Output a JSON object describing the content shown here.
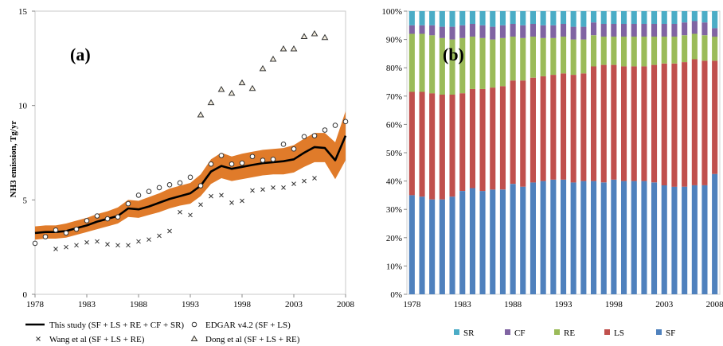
{
  "chart_data": [
    {
      "type": "line",
      "panel_label": "(a)",
      "ylabel": "NH3 emission, Tg/yr",
      "ylim": [
        0,
        15
      ],
      "yticks": [
        0,
        5,
        10,
        15
      ],
      "xlim": [
        1978,
        2008
      ],
      "xticks": [
        1978,
        1983,
        1988,
        1993,
        1998,
        2003,
        2008
      ],
      "grid": false,
      "legend_position": "bottom",
      "colors": {
        "band": "#e07b2a",
        "line": "#000000"
      },
      "series": [
        {
          "name": "This study (SF + LS + RE + CF + SR)",
          "style": "line-band",
          "x": [
            1978,
            1979,
            1980,
            1981,
            1982,
            1983,
            1984,
            1985,
            1986,
            1987,
            1988,
            1989,
            1990,
            1991,
            1992,
            1993,
            1994,
            1995,
            1996,
            1997,
            1998,
            1999,
            2000,
            2001,
            2002,
            2003,
            2004,
            2005,
            2006,
            2007,
            2008
          ],
          "values": [
            3.25,
            3.3,
            3.3,
            3.35,
            3.5,
            3.65,
            3.85,
            4.0,
            4.15,
            4.55,
            4.5,
            4.65,
            4.85,
            5.05,
            5.2,
            5.35,
            5.75,
            6.5,
            6.8,
            6.65,
            6.75,
            6.85,
            6.95,
            7.0,
            7.05,
            7.15,
            7.5,
            7.8,
            7.75,
            7.1,
            8.4
          ],
          "lower": [
            2.9,
            2.95,
            2.95,
            3.0,
            3.15,
            3.3,
            3.45,
            3.6,
            3.75,
            4.1,
            4.05,
            4.2,
            4.35,
            4.55,
            4.7,
            4.8,
            5.2,
            5.85,
            6.15,
            6.0,
            6.1,
            6.2,
            6.3,
            6.35,
            6.35,
            6.45,
            6.75,
            7.0,
            7.0,
            6.1,
            7.1
          ],
          "upper": [
            3.6,
            3.65,
            3.65,
            3.75,
            3.9,
            4.05,
            4.25,
            4.4,
            4.6,
            5.0,
            4.95,
            5.15,
            5.35,
            5.6,
            5.75,
            5.9,
            6.35,
            7.15,
            7.5,
            7.3,
            7.45,
            7.55,
            7.65,
            7.7,
            7.75,
            7.9,
            8.25,
            8.55,
            8.55,
            8.05,
            9.7
          ]
        },
        {
          "name": "EDGAR v4.2 (SF + LS)",
          "style": "circle",
          "x": [
            1978,
            1979,
            1980,
            1981,
            1982,
            1983,
            1984,
            1985,
            1986,
            1987,
            1988,
            1989,
            1990,
            1991,
            1992,
            1993,
            1994,
            1995,
            1996,
            1997,
            1998,
            1999,
            2000,
            2001,
            2002,
            2003,
            2004,
            2005,
            2006,
            2007,
            2008
          ],
          "values": [
            2.7,
            3.05,
            3.4,
            3.25,
            3.45,
            3.9,
            4.15,
            4.0,
            4.1,
            4.8,
            5.25,
            5.45,
            5.65,
            5.8,
            5.9,
            6.2,
            5.75,
            6.9,
            7.35,
            6.9,
            6.95,
            7.3,
            7.1,
            7.15,
            7.95,
            7.7,
            8.35,
            8.4,
            8.7,
            8.95,
            9.15
          ]
        },
        {
          "name": "Wang et al (SF + LS + RE)",
          "style": "x",
          "x": [
            1980,
            1981,
            1982,
            1983,
            1984,
            1985,
            1986,
            1987,
            1988,
            1989,
            1990,
            1991,
            1992,
            1993,
            1994,
            1995,
            1996,
            1997,
            1998,
            1999,
            2000,
            2001,
            2002,
            2003,
            2004,
            2005
          ],
          "values": [
            2.4,
            2.5,
            2.6,
            2.75,
            2.8,
            2.65,
            2.6,
            2.6,
            2.8,
            2.9,
            3.1,
            3.35,
            4.35,
            4.2,
            4.75,
            5.2,
            5.25,
            4.85,
            4.95,
            5.5,
            5.55,
            5.65,
            5.65,
            5.85,
            6.0,
            6.15
          ]
        },
        {
          "name": "Dong et al (SF + LS + RE)",
          "style": "triangle",
          "x": [
            1994,
            1995,
            1996,
            1997,
            1998,
            1999,
            2000,
            2001,
            2002,
            2003,
            2004,
            2005,
            2006
          ],
          "values": [
            9.5,
            10.15,
            10.85,
            10.65,
            11.2,
            10.9,
            11.95,
            12.45,
            13.0,
            13.0,
            13.65,
            13.8,
            13.6
          ]
        }
      ]
    },
    {
      "type": "bar",
      "stacked": true,
      "panel_label": "(b)",
      "ylim": [
        0,
        100
      ],
      "yticks": [
        "0%",
        "10%",
        "20%",
        "30%",
        "40%",
        "50%",
        "60%",
        "70%",
        "80%",
        "90%",
        "100%"
      ],
      "xticks": [
        "1978",
        "1983",
        "1988",
        "1993",
        "1998",
        "2003",
        "2008"
      ],
      "categories": [
        1978,
        1979,
        1980,
        1981,
        1982,
        1983,
        1984,
        1985,
        1986,
        1987,
        1988,
        1989,
        1990,
        1991,
        1992,
        1993,
        1994,
        1995,
        1996,
        1997,
        1998,
        1999,
        2000,
        2001,
        2002,
        2003,
        2004,
        2005,
        2006,
        2007,
        2008
      ],
      "grid": false,
      "legend_position": "bottom",
      "series": [
        {
          "name": "SF",
          "color": "#4f81bd",
          "values": [
            35,
            34.5,
            33.5,
            33.5,
            34.5,
            36.5,
            37.5,
            36.5,
            37,
            37,
            39,
            38,
            39.5,
            40,
            40.5,
            40.5,
            39.5,
            40,
            40,
            39.5,
            40.5,
            40,
            40,
            40,
            39.5,
            38.5,
            38,
            38,
            38.5,
            38.5,
            42.5
          ]
        },
        {
          "name": "LS",
          "color": "#c0504d",
          "values": [
            36.5,
            37,
            37.5,
            37,
            36,
            34.5,
            35,
            36,
            36,
            36.5,
            36.5,
            37.5,
            37,
            37,
            37,
            37.5,
            38,
            38,
            40.5,
            41.5,
            40.5,
            40.5,
            40.5,
            40.5,
            41.5,
            43,
            43.5,
            44,
            44.5,
            44,
            40
          ]
        },
        {
          "name": "RE",
          "color": "#9bbb59",
          "values": [
            20.5,
            20.5,
            20.5,
            20,
            19.5,
            19.5,
            18.5,
            18,
            17,
            17,
            15.5,
            15,
            14.5,
            13.5,
            13,
            13,
            12.5,
            12,
            11,
            10,
            10,
            10.5,
            10.5,
            10.5,
            10,
            9.5,
            9.5,
            9.5,
            9,
            9,
            8.5
          ]
        },
        {
          "name": "CF",
          "color": "#8064a2",
          "values": [
            3,
            3,
            3.5,
            4,
            4.5,
            4.5,
            4.5,
            4.5,
            4.5,
            4.5,
            4.5,
            4.5,
            4.5,
            4.5,
            4.5,
            4.5,
            4.5,
            4.5,
            4.5,
            4.5,
            4.5,
            4.5,
            4.5,
            4.5,
            4.5,
            4.5,
            4.5,
            4.5,
            4.5,
            4.5,
            3
          ]
        },
        {
          "name": "SR",
          "color": "#4bacc6",
          "values": [
            5,
            5,
            5,
            5.5,
            5.5,
            5,
            4.5,
            5,
            5.5,
            5,
            4.5,
            5,
            4.5,
            5,
            5,
            4.5,
            5.5,
            5.5,
            4,
            4.5,
            4.5,
            4.5,
            4.5,
            4.5,
            4.5,
            4.5,
            4.5,
            4,
            3.5,
            4,
            6
          ]
        }
      ]
    }
  ]
}
